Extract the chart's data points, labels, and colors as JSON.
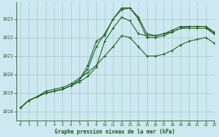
{
  "title": "Graphe pression niveau de la mer (hPa)",
  "background_color": "#cde8f0",
  "plot_bg_color": "#cde8f0",
  "grid_color": "#a0c8c0",
  "line_color": "#1a5c1a",
  "xlim": [
    -0.5,
    23
  ],
  "ylim": [
    1017.5,
    1023.9
  ],
  "yticks": [
    1018,
    1019,
    1020,
    1021,
    1022,
    1023
  ],
  "xticks": [
    0,
    1,
    2,
    3,
    4,
    5,
    6,
    7,
    8,
    9,
    10,
    11,
    12,
    13,
    14,
    15,
    16,
    17,
    18,
    19,
    20,
    21,
    22,
    23
  ],
  "series1_x": [
    0,
    1,
    2,
    3,
    4,
    5,
    6,
    7,
    8,
    9,
    10,
    11,
    12,
    13,
    14,
    15,
    16,
    17,
    18,
    19,
    20,
    21,
    22,
    23
  ],
  "series1_y": [
    1018.2,
    1018.6,
    1018.8,
    1019.1,
    1019.2,
    1019.3,
    1019.5,
    1019.8,
    1020.1,
    1020.5,
    1021.0,
    1021.5,
    1022.1,
    1022.0,
    1021.5,
    1021.0,
    1021.0,
    1021.1,
    1021.3,
    1021.6,
    1021.8,
    1021.9,
    1022.0,
    1021.7
  ],
  "series2_x": [
    0,
    1,
    2,
    3,
    4,
    5,
    6,
    7,
    8,
    9,
    10,
    11,
    12,
    13,
    14,
    15,
    16,
    17,
    18,
    19,
    20,
    21,
    22,
    23
  ],
  "series2_y": [
    1018.2,
    1018.6,
    1018.8,
    1019.0,
    1019.1,
    1019.2,
    1019.4,
    1019.6,
    1019.9,
    1020.4,
    1021.8,
    1022.5,
    1023.1,
    1022.9,
    1022.2,
    1022.1,
    1022.1,
    1022.2,
    1022.3,
    1022.5,
    1022.5,
    1022.5,
    1022.5,
    1022.2
  ],
  "series3_x": [
    0,
    1,
    2,
    3,
    4,
    5,
    6,
    7,
    8,
    9,
    10,
    11,
    12,
    13,
    14,
    15,
    16,
    17,
    18,
    19,
    20,
    21,
    22,
    23
  ],
  "series3_y": [
    1018.2,
    1018.6,
    1018.8,
    1019.0,
    1019.1,
    1019.2,
    1019.4,
    1019.7,
    1020.3,
    1021.5,
    1022.2,
    1023.0,
    1023.6,
    1023.6,
    1023.1,
    1022.2,
    1022.1,
    1022.2,
    1022.4,
    1022.6,
    1022.6,
    1022.6,
    1022.6,
    1022.3
  ],
  "series4_x": [
    0,
    1,
    2,
    3,
    4,
    5,
    6,
    7,
    8,
    9,
    10,
    11,
    12,
    13,
    14,
    15,
    16,
    17,
    18,
    19,
    20,
    21,
    22,
    23
  ],
  "series4_y": [
    1018.2,
    1018.6,
    1018.8,
    1019.0,
    1019.1,
    1019.2,
    1019.4,
    1019.7,
    1020.5,
    1021.8,
    1022.1,
    1023.0,
    1023.5,
    1023.6,
    1023.0,
    1022.0,
    1022.0,
    1022.1,
    1022.3,
    1022.5,
    1022.6,
    1022.6,
    1022.6,
    1022.2
  ],
  "marker": "+"
}
